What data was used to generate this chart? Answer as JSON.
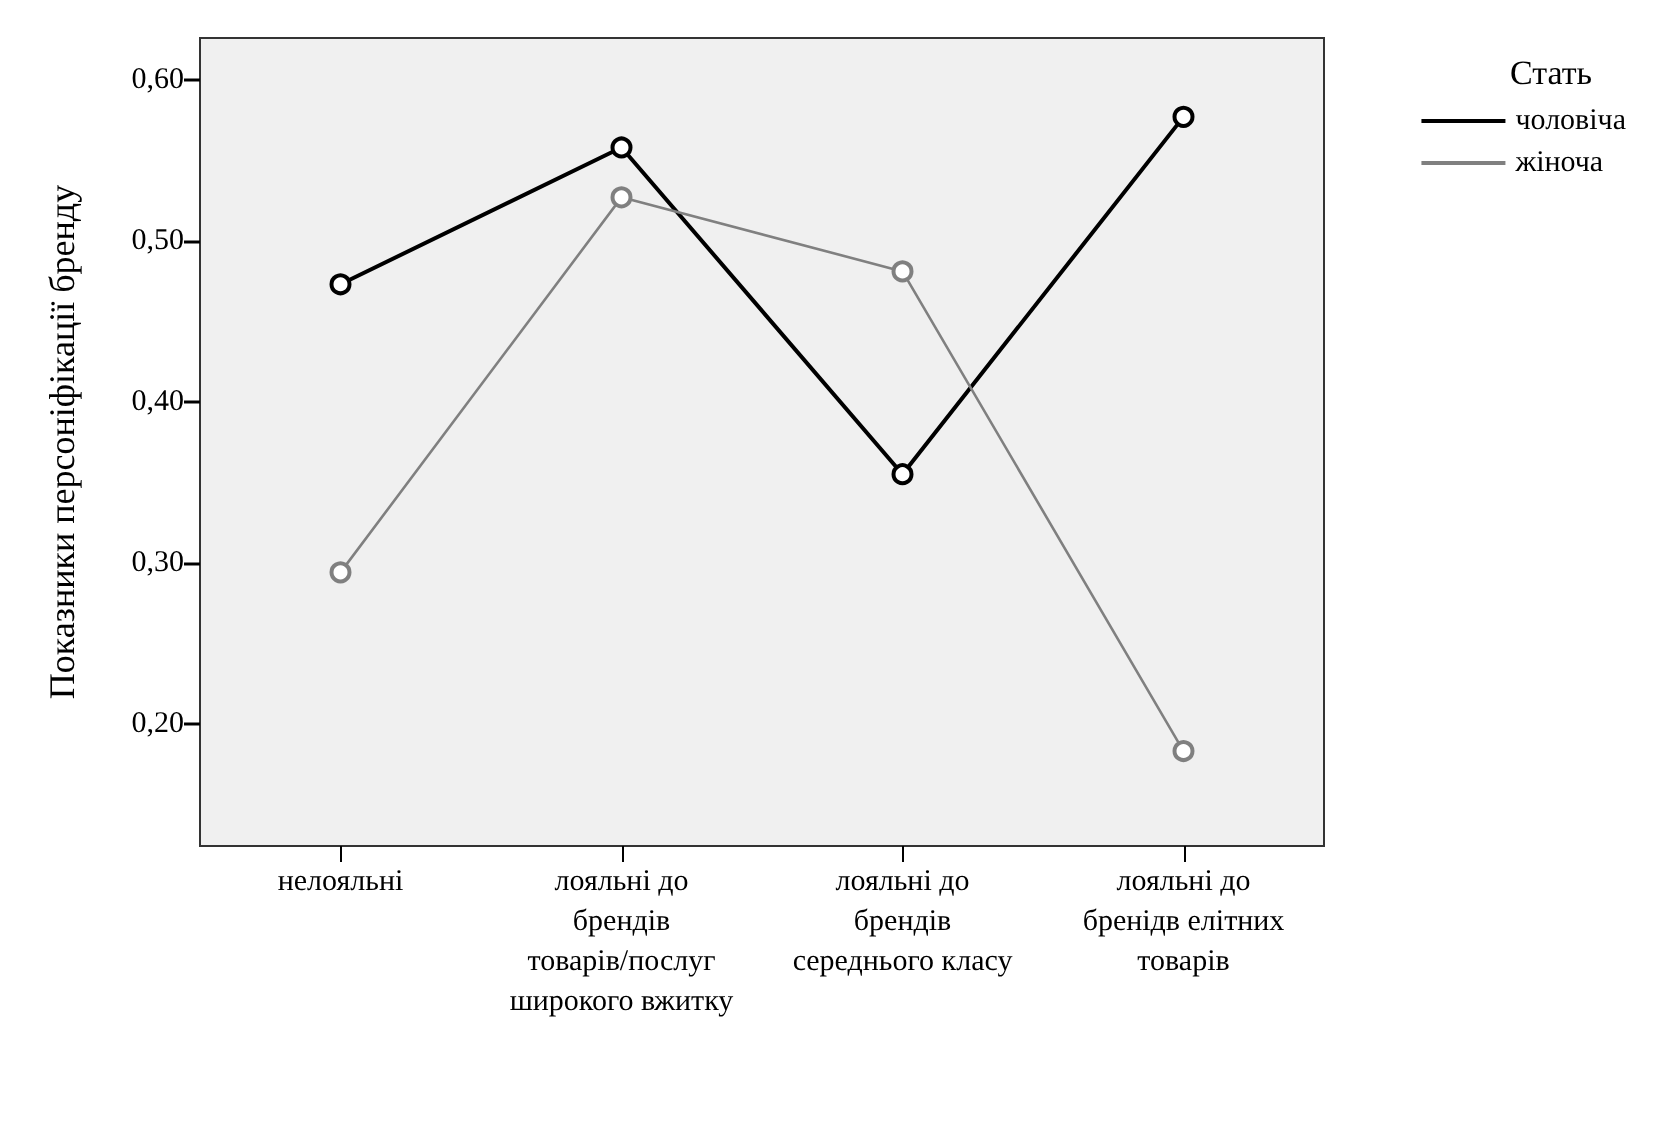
{
  "chart_data": {
    "type": "line",
    "ylabel": "Показники персоніфікації бренду",
    "legend_title": "Стать",
    "categories": [
      "нелояльні",
      "лояльні до брендів товарів/послуг широкого вжитку",
      "лояльні до брендів середнього класу",
      "лояльні до бренідв елітних товарів"
    ],
    "series": [
      {
        "name": "чоловіча",
        "color": "#000000",
        "values": [
          0.473,
          0.558,
          0.355,
          0.577
        ]
      },
      {
        "name": "жіноча",
        "color": "#808080",
        "values": [
          0.294,
          0.527,
          0.481,
          0.183
        ]
      }
    ],
    "ylim": [
      0.124,
      0.626
    ],
    "yticks": [
      {
        "value": 0.2,
        "label": "0,20"
      },
      {
        "value": 0.3,
        "label": "0,30"
      },
      {
        "value": 0.4,
        "label": "0,40"
      },
      {
        "value": 0.5,
        "label": "0,50"
      },
      {
        "value": 0.6,
        "label": "0,60"
      }
    ],
    "grid": false,
    "legend": "top right",
    "marker": "circle",
    "line_style": "solid"
  }
}
